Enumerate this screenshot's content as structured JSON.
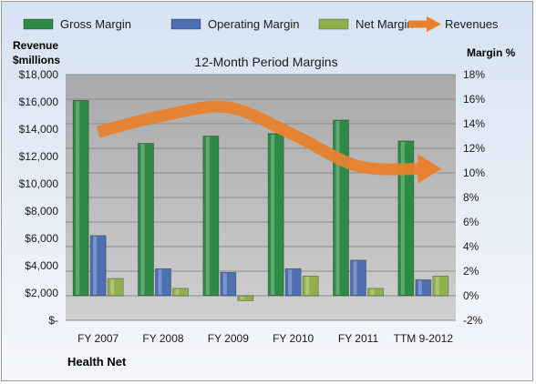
{
  "chart_data": {
    "type": "bar",
    "title": "12-Month Period Margins",
    "company": "Health Net",
    "left_axis_label": [
      "Revenue",
      "$millions"
    ],
    "right_axis_label": "Margin %",
    "categories": [
      "FY 2007",
      "FY 2008",
      "FY 2009",
      "FY 2010",
      "FY 2011",
      "TTM 9-2012"
    ],
    "left_axis": {
      "min": 0,
      "max": 18000,
      "step": 2000,
      "tick_labels": [
        "$-",
        "$2,000",
        "$4,000",
        "$6,000",
        "$8,000",
        "$10,000",
        "$12,000",
        "$14,000",
        "$16,000",
        "$18,000"
      ]
    },
    "right_axis": {
      "min": -2,
      "max": 18,
      "step": 2,
      "tick_labels": [
        "-2%",
        "0%",
        "2%",
        "4%",
        "6%",
        "8%",
        "10%",
        "12%",
        "14%",
        "16%",
        "18%"
      ]
    },
    "series": [
      {
        "name": "Gross Margin",
        "axis": "right",
        "color": "#2e8b45",
        "values": [
          15.9,
          12.4,
          13.0,
          13.2,
          14.3,
          12.6
        ]
      },
      {
        "name": "Operating Margin",
        "axis": "right",
        "color": "#4f6fb3",
        "values": [
          4.9,
          2.2,
          1.9,
          2.2,
          2.9,
          1.3
        ]
      },
      {
        "name": "Net Margin",
        "axis": "right",
        "color": "#8fb04d",
        "values": [
          1.4,
          0.6,
          -0.4,
          1.6,
          0.6,
          1.6
        ]
      },
      {
        "name": "Revenues",
        "axis": "left",
        "color": "#e8812d",
        "values": [
          13800,
          15000,
          15600,
          13600,
          11300,
          11100
        ]
      }
    ],
    "grid": true,
    "legend_position": "top"
  }
}
